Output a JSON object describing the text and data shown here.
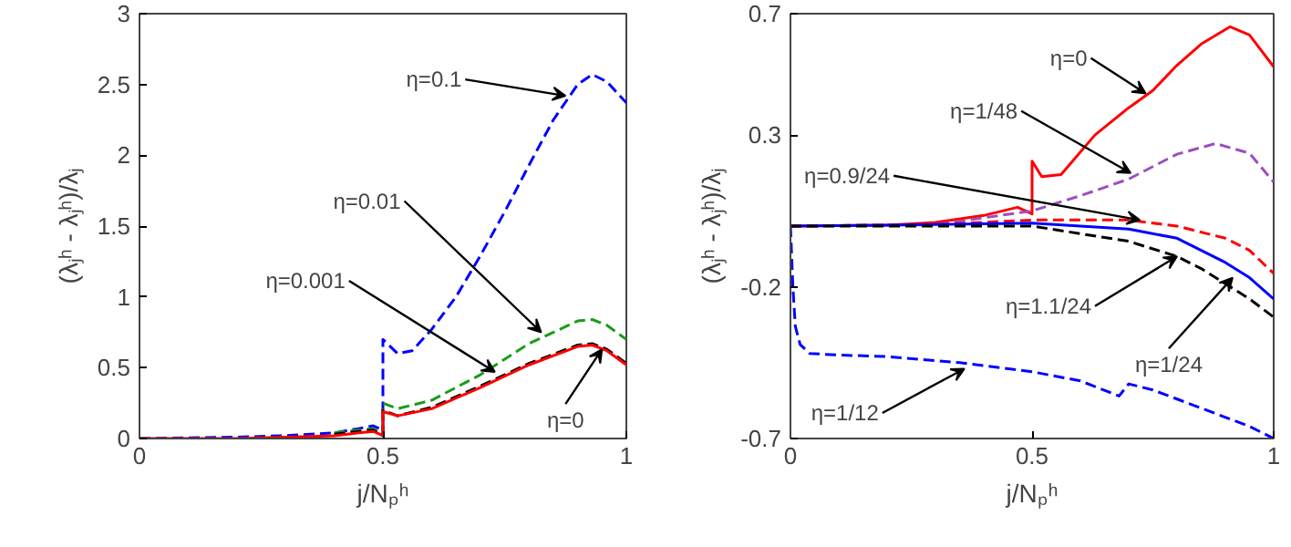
{
  "chart_data": [
    {
      "type": "line",
      "xlabel": "j/Nₚʰ",
      "ylabel": "(λⱼʰ - λⱼʰ)/λⱼ",
      "xlim": [
        0,
        1
      ],
      "ylim": [
        0,
        3
      ],
      "xticks": [
        0,
        0.5,
        1
      ],
      "yticks": [
        0,
        0.5,
        1,
        1.5,
        2,
        2.5,
        3
      ],
      "grid": false,
      "series": [
        {
          "color": "#0000ff",
          "line_style": "dashed",
          "x": [
            0,
            0.2,
            0.3,
            0.4,
            0.45,
            0.48,
            0.5,
            0.5,
            0.53,
            0.56,
            0.6,
            0.65,
            0.7,
            0.75,
            0.8,
            0.85,
            0.9,
            0.93,
            0.96,
            1
          ],
          "values": [
            0,
            0.01,
            0.02,
            0.04,
            0.07,
            0.09,
            0.06,
            0.7,
            0.6,
            0.62,
            0.77,
            1.0,
            1.29,
            1.6,
            1.93,
            2.25,
            2.5,
            2.57,
            2.52,
            2.37
          ]
        },
        {
          "color": "#1a9c1a",
          "line_style": "dashed",
          "x": [
            0.4,
            0.45,
            0.48,
            0.5,
            0.5,
            0.53,
            0.6,
            0.7,
            0.8,
            0.9,
            0.93,
            0.96,
            1
          ],
          "values": [
            0.04,
            0.06,
            0.07,
            0.03,
            0.25,
            0.21,
            0.27,
            0.45,
            0.67,
            0.83,
            0.84,
            0.8,
            0.7
          ]
        },
        {
          "color": "#000000",
          "line_style": "dashed",
          "x": [
            0.4,
            0.45,
            0.48,
            0.5,
            0.5,
            0.53,
            0.6,
            0.7,
            0.8,
            0.9,
            0.93,
            0.96,
            1
          ],
          "values": [
            0.03,
            0.05,
            0.06,
            0.02,
            0.2,
            0.16,
            0.22,
            0.37,
            0.53,
            0.66,
            0.67,
            0.63,
            0.53
          ]
        },
        {
          "color": "#ff0000",
          "line_style": "solid",
          "x": [
            0,
            0.2,
            0.3,
            0.4,
            0.45,
            0.48,
            0.5,
            0.5,
            0.53,
            0.6,
            0.7,
            0.8,
            0.9,
            0.93,
            0.96,
            1
          ],
          "values": [
            0,
            0,
            0.01,
            0.02,
            0.04,
            0.05,
            0.02,
            0.19,
            0.16,
            0.21,
            0.36,
            0.52,
            0.65,
            0.66,
            0.62,
            0.52
          ]
        }
      ],
      "annotations": [
        {
          "text": "η=0.1",
          "x": 0.875,
          "y": 2.42
        },
        {
          "text": "η=0.01",
          "x": 0.825,
          "y": 0.75
        },
        {
          "text": "η=0.001",
          "x": 0.73,
          "y": 0.47
        },
        {
          "text": "η=0",
          "x": 0.95,
          "y": 0.63
        }
      ]
    },
    {
      "type": "line",
      "xlabel": "j/Nₚʰ",
      "ylabel": "(λⱼʰ - λⱼʰ)/λⱼ",
      "xlim": [
        0,
        1
      ],
      "ylim": [
        -0.7,
        0.7
      ],
      "xticks": [
        0,
        0.5,
        1
      ],
      "yticks": [
        -0.7,
        -0.2,
        0.3,
        0.7
      ],
      "grid": false,
      "series": [
        {
          "color": "#ff0000",
          "line_style": "solid",
          "x": [
            0,
            0.2,
            0.3,
            0.4,
            0.47,
            0.5,
            0.5,
            0.52,
            0.56,
            0.63,
            0.7,
            0.75,
            0.8,
            0.85,
            0.91,
            0.95,
            1
          ],
          "values": [
            0,
            0.003,
            0.012,
            0.035,
            0.062,
            0.04,
            0.214,
            0.163,
            0.17,
            0.3,
            0.39,
            0.447,
            0.53,
            0.6,
            0.657,
            0.63,
            0.525
          ]
        },
        {
          "color": "#9b4fc0",
          "line_style": "dashed",
          "x": [
            0,
            0.3,
            0.5,
            0.6,
            0.7,
            0.8,
            0.88,
            0.95,
            1
          ],
          "values": [
            0,
            0.005,
            0.05,
            0.1,
            0.155,
            0.237,
            0.272,
            0.24,
            0.145
          ]
        },
        {
          "color": "#ff0000",
          "line_style": "dashed",
          "x": [
            0,
            0.3,
            0.5,
            0.7,
            0.8,
            0.9,
            0.95,
            1
          ],
          "values": [
            0,
            0.005,
            0.02,
            0.02,
            0.0,
            -0.04,
            -0.08,
            -0.156
          ]
        },
        {
          "color": "#0000ff",
          "line_style": "solid",
          "x": [
            0,
            0.3,
            0.5,
            0.7,
            0.8,
            0.85,
            0.9,
            0.95,
            1
          ],
          "values": [
            0,
            0.005,
            0.01,
            -0.01,
            -0.04,
            -0.08,
            -0.12,
            -0.17,
            -0.24
          ]
        },
        {
          "color": "#000000",
          "line_style": "dashed",
          "x": [
            0,
            0.3,
            0.5,
            0.7,
            0.8,
            0.85,
            0.9,
            0.95,
            1
          ],
          "values": [
            0,
            0.0,
            0.0,
            -0.05,
            -0.1,
            -0.14,
            -0.19,
            -0.24,
            -0.3
          ]
        },
        {
          "color": "#0000ff",
          "line_style": "dashed",
          "x": [
            0,
            0.005,
            0.01,
            0.02,
            0.04,
            0.1,
            0.2,
            0.35,
            0.5,
            0.6,
            0.68,
            0.7,
            0.75,
            0.85,
            0.95,
            1
          ],
          "values": [
            0,
            -0.2,
            -0.33,
            -0.39,
            -0.42,
            -0.425,
            -0.43,
            -0.45,
            -0.48,
            -0.51,
            -0.56,
            -0.52,
            -0.54,
            -0.6,
            -0.66,
            -0.7
          ]
        }
      ],
      "annotations": [
        {
          "text": "η=0",
          "x": 0.735,
          "y": 0.437
        },
        {
          "text": "η=1/48",
          "x": 0.704,
          "y": 0.175
        },
        {
          "text": "η=0.9/24",
          "x": 0.723,
          "y": 0.02
        },
        {
          "text": "η=1.1/24",
          "x": 0.8,
          "y": -0.1
        },
        {
          "text": "η=1/24",
          "x": 0.915,
          "y": -0.17
        },
        {
          "text": "η=1/12",
          "x": 0.36,
          "y": -0.47
        }
      ]
    }
  ]
}
